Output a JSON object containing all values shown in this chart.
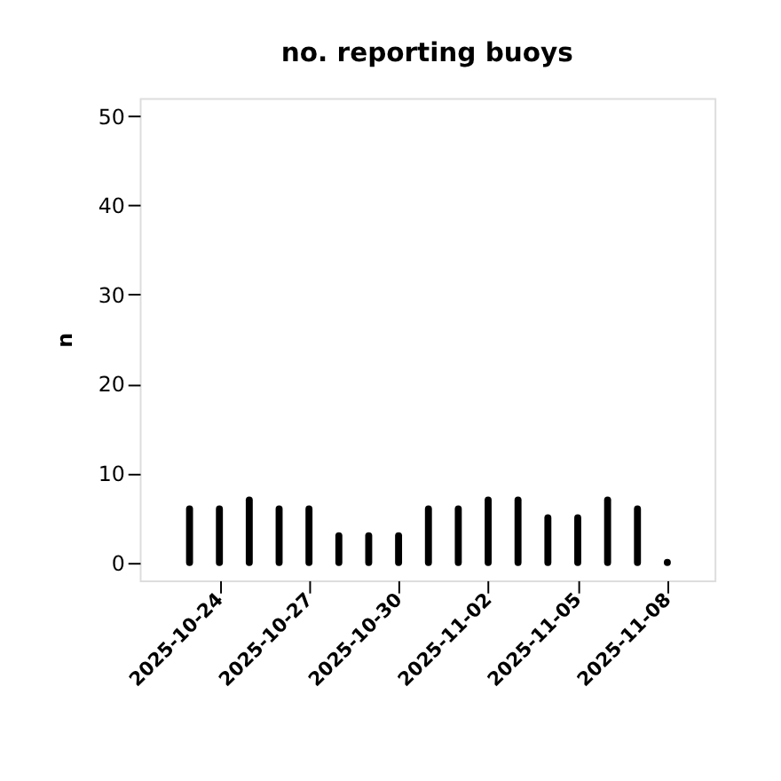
{
  "chart_data": {
    "type": "bar",
    "title": "no. reporting buoys",
    "ylabel": "n",
    "x": [
      "2025-10-23",
      "2025-10-24",
      "2025-10-25",
      "2025-10-26",
      "2025-10-27",
      "2025-10-28",
      "2025-10-29",
      "2025-10-30",
      "2025-10-31",
      "2025-11-01",
      "2025-11-02",
      "2025-11-03",
      "2025-11-04",
      "2025-11-05",
      "2025-11-06",
      "2025-11-07",
      "2025-11-08"
    ],
    "values": [
      6,
      6,
      7,
      6,
      6,
      3,
      3,
      3,
      6,
      6,
      7,
      7,
      5,
      5,
      7,
      6,
      0
    ],
    "color": "#000000",
    "xlim": [
      "2025-10-21T08:00",
      "2025-11-09T14:00"
    ],
    "xticks": [
      "2025-10-24",
      "2025-10-27",
      "2025-10-30",
      "2025-11-02",
      "2025-11-05",
      "2025-11-08"
    ],
    "ylim": [
      -2,
      52
    ],
    "yticks": [
      0,
      10,
      20,
      30,
      40,
      50
    ],
    "grid": false
  }
}
